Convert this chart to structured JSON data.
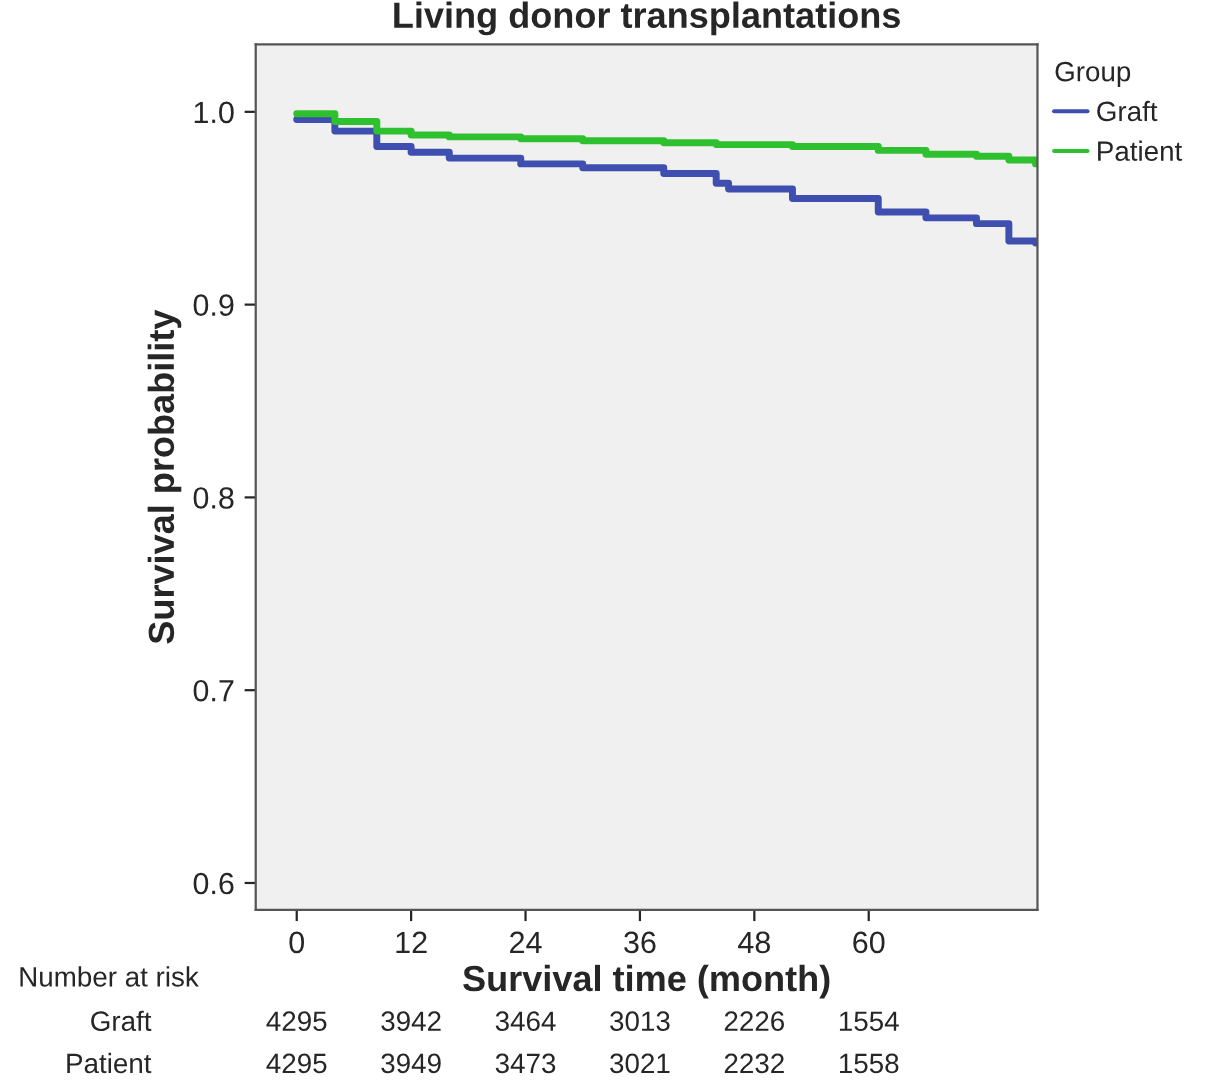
{
  "chart_data": {
    "type": "step",
    "title": "Living donor transplantations",
    "xlabel": "Survival time (month)",
    "ylabel": "Survival probability",
    "legend_title": "Group",
    "x": [
      0,
      4,
      8.4,
      12,
      16,
      23.5,
      30,
      38.5,
      44,
      45.3,
      52,
      61,
      66,
      71.3,
      74.7,
      77.5
    ],
    "series": [
      {
        "name": "Graft",
        "color": "#3f4fb0",
        "values": [
          0.996,
          0.99,
          0.982,
          0.979,
          0.976,
          0.973,
          0.971,
          0.968,
          0.963,
          0.96,
          0.955,
          0.948,
          0.945,
          0.942,
          0.933,
          0.932
        ]
      },
      {
        "name": "Patient",
        "color": "#2ec02e",
        "values": [
          0.999,
          0.995,
          0.99,
          0.988,
          0.987,
          0.986,
          0.985,
          0.984,
          0.983,
          0.983,
          0.982,
          0.98,
          0.978,
          0.977,
          0.975,
          0.973
        ]
      }
    ],
    "xlim": [
      -4.3,
      77.7
    ],
    "xticks": [
      0,
      12,
      24,
      36,
      48,
      60
    ],
    "ylim": [
      0.586,
      1.035
    ],
    "yticks": [
      0.6,
      0.7,
      0.8,
      0.9,
      {
        "value": 1.0,
        "label": "1.0"
      }
    ],
    "grid": false,
    "legend": "top right",
    "line_style": "solid",
    "annotations": [
      "Number at risk",
      "Graft",
      "4295",
      "3942",
      "3464",
      "3013",
      "2226",
      "1554",
      "Patient",
      "4295",
      "3949",
      "3473",
      "3021",
      "2232",
      "1558"
    ]
  }
}
